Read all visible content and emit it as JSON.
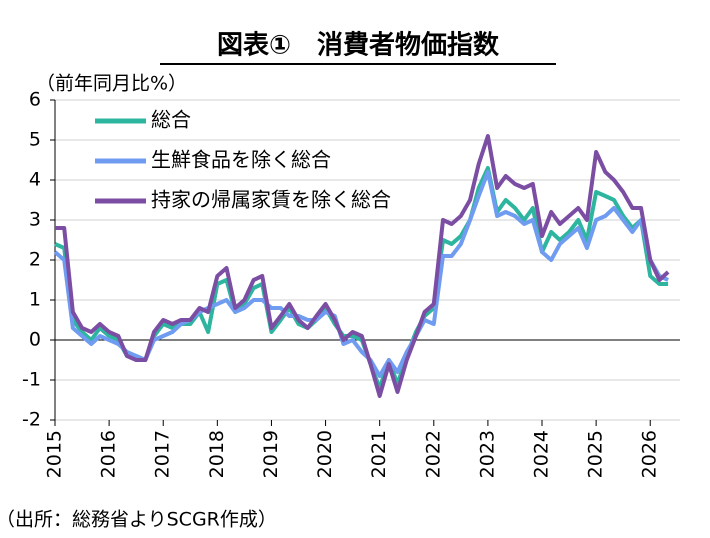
{
  "chart_data": {
    "type": "line",
    "title": "図表①　消費者物価指数",
    "y_axis_label": "（前年同月比%）",
    "source": "（出所：総務省よりSCGR作成）",
    "x": [
      2015,
      2015.17,
      2015.33,
      2015.5,
      2015.67,
      2015.83,
      2016,
      2016.17,
      2016.33,
      2016.5,
      2016.67,
      2016.83,
      2017,
      2017.17,
      2017.33,
      2017.5,
      2017.67,
      2017.83,
      2018,
      2018.17,
      2018.33,
      2018.5,
      2018.67,
      2018.83,
      2019,
      2019.17,
      2019.33,
      2019.5,
      2019.67,
      2019.83,
      2020,
      2020.17,
      2020.33,
      2020.5,
      2020.67,
      2020.83,
      2021,
      2021.17,
      2021.33,
      2021.5,
      2021.67,
      2021.83,
      2022,
      2022.17,
      2022.33,
      2022.5,
      2022.67,
      2022.83,
      2023,
      2023.17,
      2023.33,
      2023.5,
      2023.67,
      2023.83,
      2024,
      2024.17,
      2024.33,
      2024.5,
      2024.67,
      2024.83,
      2025,
      2025.17,
      2025.33,
      2025.5,
      2025.67,
      2025.83,
      2026,
      2026.17,
      2026.33
    ],
    "series": [
      {
        "name": "総合",
        "color": "#2db5a0",
        "values": [
          2.4,
          2.3,
          0.5,
          0.2,
          0.0,
          0.3,
          0.1,
          0.0,
          -0.4,
          -0.4,
          -0.5,
          0.1,
          0.4,
          0.3,
          0.4,
          0.4,
          0.7,
          0.2,
          1.4,
          1.5,
          0.7,
          0.9,
          1.3,
          1.4,
          0.2,
          0.5,
          0.8,
          0.4,
          0.3,
          0.5,
          0.8,
          0.4,
          0.1,
          0.1,
          0.0,
          -0.6,
          -1.2,
          -0.5,
          -1.1,
          -0.4,
          0.2,
          0.6,
          0.8,
          2.5,
          2.4,
          2.6,
          3.0,
          3.8,
          4.3,
          3.2,
          3.5,
          3.3,
          3.0,
          3.3,
          2.2,
          2.7,
          2.5,
          2.7,
          3.0,
          2.5,
          3.7,
          3.6,
          3.5,
          3.1,
          2.8,
          3.0,
          1.6,
          1.4,
          1.4
        ]
      },
      {
        "name": "生鮮食品を除く総合",
        "color": "#6f9cf0",
        "values": [
          2.2,
          2.0,
          0.3,
          0.1,
          -0.1,
          0.1,
          0.0,
          -0.1,
          -0.3,
          -0.4,
          -0.5,
          0.0,
          0.1,
          0.2,
          0.4,
          0.5,
          0.7,
          0.8,
          0.9,
          1.0,
          0.7,
          0.8,
          1.0,
          1.0,
          0.8,
          0.8,
          0.6,
          0.6,
          0.5,
          0.5,
          0.7,
          0.6,
          -0.1,
          0.0,
          -0.3,
          -0.5,
          -0.9,
          -0.5,
          -0.8,
          -0.3,
          0.1,
          0.5,
          0.4,
          2.1,
          2.1,
          2.4,
          3.0,
          3.6,
          4.2,
          3.1,
          3.2,
          3.1,
          2.9,
          3.0,
          2.2,
          2.0,
          2.4,
          2.6,
          2.8,
          2.3,
          3.0,
          3.1,
          3.3,
          3.0,
          2.7,
          3.0,
          2.0,
          1.6,
          1.5
        ]
      },
      {
        "name": "持家の帰属家賃を除く総合",
        "color": "#7b4ea3",
        "values": [
          2.8,
          2.8,
          0.7,
          0.3,
          0.2,
          0.4,
          0.2,
          0.1,
          -0.4,
          -0.5,
          -0.5,
          0.2,
          0.5,
          0.4,
          0.5,
          0.5,
          0.8,
          0.7,
          1.6,
          1.8,
          0.8,
          1.0,
          1.5,
          1.6,
          0.3,
          0.6,
          0.9,
          0.5,
          0.3,
          0.6,
          0.9,
          0.5,
          0.0,
          0.2,
          0.1,
          -0.6,
          -1.4,
          -0.6,
          -1.3,
          -0.5,
          0.1,
          0.7,
          0.9,
          3.0,
          2.9,
          3.1,
          3.5,
          4.4,
          5.1,
          3.8,
          4.1,
          3.9,
          3.8,
          3.9,
          2.6,
          3.2,
          2.9,
          3.1,
          3.3,
          3.0,
          4.7,
          4.2,
          4.0,
          3.7,
          3.3,
          3.3,
          2.0,
          1.5,
          1.7
        ]
      }
    ],
    "xlim": [
      2015,
      2026.55
    ],
    "xticks": [
      2015,
      2016,
      2017,
      2018,
      2019,
      2020,
      2021,
      2022,
      2023,
      2024,
      2025,
      2026
    ],
    "ylim": [
      -2,
      6
    ],
    "yticks": [
      -2,
      -1,
      0,
      1,
      2,
      3,
      4,
      5,
      6
    ],
    "grid": true
  }
}
